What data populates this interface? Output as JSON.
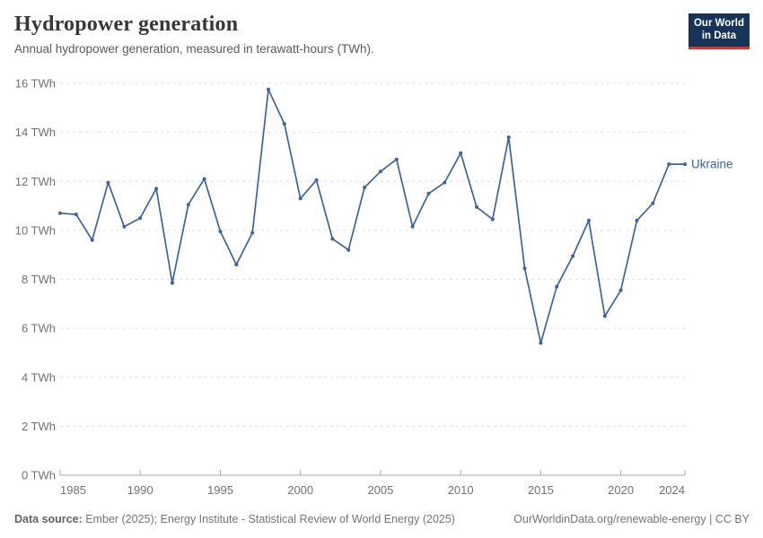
{
  "logo": {
    "line1": "Our World",
    "line2": "in Data"
  },
  "chart_data": {
    "type": "line",
    "title": "Hydropower generation",
    "subtitle": "Annual hydropower generation, measured in terawatt-hours (TWh).",
    "unit": "TWh",
    "xlim": [
      1985,
      2024
    ],
    "ylim": [
      0,
      16
    ],
    "grid": "horizontal-dashed",
    "legend": "line-end-label",
    "x": [
      1985,
      1986,
      1987,
      1988,
      1989,
      1990,
      1991,
      1992,
      1993,
      1994,
      1995,
      1996,
      1997,
      1998,
      1999,
      2000,
      2001,
      2002,
      2003,
      2004,
      2005,
      2006,
      2007,
      2008,
      2009,
      2010,
      2011,
      2012,
      2013,
      2014,
      2015,
      2016,
      2017,
      2018,
      2019,
      2020,
      2021,
      2022,
      2023,
      2024
    ],
    "series": [
      {
        "name": "Ukraine",
        "color": "#3d64a0",
        "values": [
          10.7,
          10.65,
          9.6,
          11.95,
          10.15,
          10.5,
          11.7,
          7.85,
          11.05,
          12.1,
          9.95,
          8.6,
          9.9,
          15.75,
          14.35,
          11.3,
          12.05,
          9.65,
          9.2,
          11.75,
          12.4,
          12.9,
          10.15,
          11.5,
          11.95,
          13.15,
          10.95,
          10.45,
          13.8,
          8.45,
          5.4,
          7.7,
          8.95,
          10.4,
          6.5,
          7.55,
          10.4,
          11.1,
          12.7,
          12.7
        ]
      }
    ],
    "y_ticks": [
      {
        "value": 0,
        "label": "0 TWh"
      },
      {
        "value": 2,
        "label": "2 TWh"
      },
      {
        "value": 4,
        "label": "4 TWh"
      },
      {
        "value": 6,
        "label": "6 TWh"
      },
      {
        "value": 8,
        "label": "8 TWh"
      },
      {
        "value": 10,
        "label": "10 TWh"
      },
      {
        "value": 12,
        "label": "12 TWh"
      },
      {
        "value": 14,
        "label": "14 TWh"
      },
      {
        "value": 16,
        "label": "16 TWh"
      }
    ],
    "x_ticks": [
      {
        "value": 1985,
        "label": "1985"
      },
      {
        "value": 1990,
        "label": "1990"
      },
      {
        "value": 1995,
        "label": "1995"
      },
      {
        "value": 2000,
        "label": "2000"
      },
      {
        "value": 2005,
        "label": "2005"
      },
      {
        "value": 2010,
        "label": "2010"
      },
      {
        "value": 2015,
        "label": "2015"
      },
      {
        "value": 2020,
        "label": "2020"
      },
      {
        "value": 2024,
        "label": "2024"
      }
    ]
  },
  "footer": {
    "source_label": "Data source:",
    "source_text": "Ember (2025); Energy Institute - Statistical Review of World Energy (2025)",
    "link": "OurWorldinData.org/renewable-energy | CC BY"
  },
  "colors": {
    "accent": "#3d64a0",
    "grid": "#e1e1e6",
    "axis": "#a8a8ad",
    "tick_text": "#71717a",
    "logo_bg": "#16335a",
    "logo_red": "#d8352c"
  }
}
